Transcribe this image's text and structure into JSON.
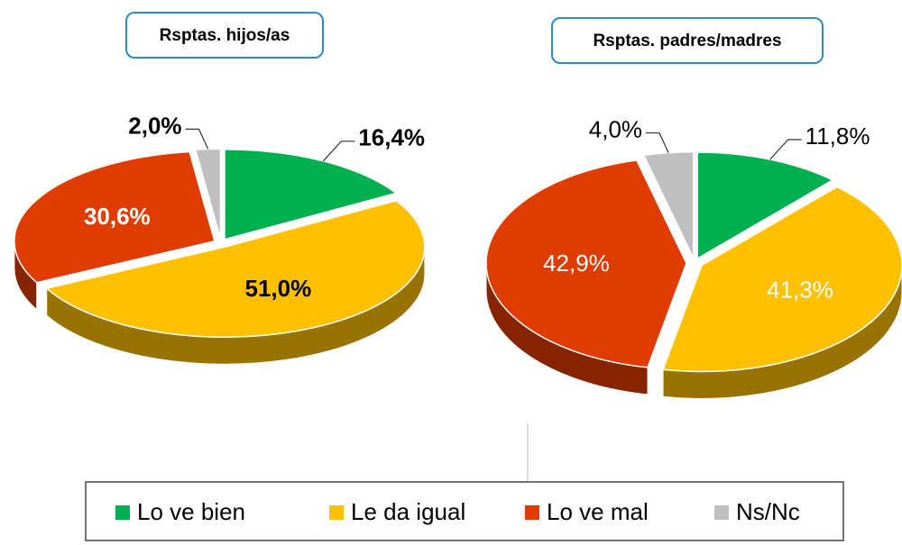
{
  "chart_data": [
    {
      "type": "pie",
      "title": "Rsptas. hijos/as",
      "categories": [
        "Lo ve bien",
        "Le da igual",
        "Lo ve mal",
        "Ns/Nc"
      ],
      "values": [
        16.4,
        51.0,
        30.6,
        2.0
      ],
      "value_labels": [
        "16,4%",
        "51,0%",
        "30,6%",
        "2,0%"
      ],
      "colors": [
        "#00b050",
        "#ffc000",
        "#e03c00",
        "#bfbfbf"
      ]
    },
    {
      "type": "pie",
      "title": "Rsptas. padres/madres",
      "categories": [
        "Lo ve bien",
        "Le da igual",
        "Lo ve mal",
        "Ns/Nc"
      ],
      "values": [
        11.8,
        41.3,
        42.9,
        4.0
      ],
      "value_labels": [
        "11,8%",
        "41,3%",
        "42,9%",
        "4,0%"
      ],
      "colors": [
        "#00b050",
        "#ffc000",
        "#e03c00",
        "#bfbfbf"
      ]
    }
  ]
}
